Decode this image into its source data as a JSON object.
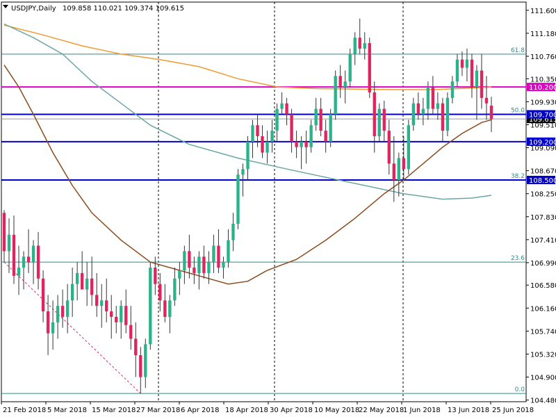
{
  "header": {
    "symbol_timeframe": "USDJPY,Daily",
    "ohlc": "109.858 110.021 109.374 109.615"
  },
  "chart_data": {
    "type": "candlestick",
    "ylim": [
      104.45,
      111.75
    ],
    "y_ticks": [
      "111.600",
      "111.180",
      "110.760",
      "110.350",
      "109.930",
      "109.510",
      "109.090",
      "108.670",
      "108.250",
      "107.830",
      "107.410",
      "106.990",
      "106.580",
      "106.160",
      "105.740",
      "105.320",
      "104.900",
      "104.480"
    ],
    "x_tick_labels": [
      "21 Feb 2018",
      "5 Mar 2018",
      "15 Mar 2018",
      "27 Mar 2018",
      "6 Apr 2018",
      "18 Apr 2018",
      "30 Apr 2018",
      "10 May 2018",
      "22 May 2018",
      "1 Jun 2018",
      "13 Jun 2018",
      "25 Jun 2018"
    ],
    "candles": [
      {
        "o": 107.9,
        "h": 107.95,
        "l": 107.0,
        "c": 107.2
      },
      {
        "o": 107.2,
        "h": 107.8,
        "l": 106.8,
        "c": 107.5
      },
      {
        "o": 107.5,
        "h": 107.85,
        "l": 106.6,
        "c": 106.75
      },
      {
        "o": 106.75,
        "h": 107.3,
        "l": 106.4,
        "c": 106.9
      },
      {
        "o": 106.9,
        "h": 107.2,
        "l": 106.5,
        "c": 107.1
      },
      {
        "o": 107.1,
        "h": 107.6,
        "l": 106.8,
        "c": 107.0
      },
      {
        "o": 107.0,
        "h": 107.4,
        "l": 106.6,
        "c": 107.3
      },
      {
        "o": 107.3,
        "h": 107.55,
        "l": 106.5,
        "c": 106.7
      },
      {
        "o": 106.7,
        "h": 106.85,
        "l": 105.9,
        "c": 106.1
      },
      {
        "o": 106.1,
        "h": 106.4,
        "l": 105.3,
        "c": 105.7
      },
      {
        "o": 105.7,
        "h": 106.3,
        "l": 105.4,
        "c": 105.9
      },
      {
        "o": 105.9,
        "h": 106.4,
        "l": 105.6,
        "c": 106.2
      },
      {
        "o": 106.2,
        "h": 106.5,
        "l": 105.8,
        "c": 106.0
      },
      {
        "o": 106.0,
        "h": 106.6,
        "l": 105.7,
        "c": 106.3
      },
      {
        "o": 106.3,
        "h": 106.9,
        "l": 106.0,
        "c": 106.6
      },
      {
        "o": 106.6,
        "h": 107.0,
        "l": 106.3,
        "c": 106.8
      },
      {
        "o": 106.8,
        "h": 107.2,
        "l": 106.5,
        "c": 106.5
      },
      {
        "o": 106.5,
        "h": 107.0,
        "l": 106.2,
        "c": 106.7
      },
      {
        "o": 106.7,
        "h": 107.1,
        "l": 106.2,
        "c": 106.4
      },
      {
        "o": 106.4,
        "h": 106.8,
        "l": 106.0,
        "c": 106.2
      },
      {
        "o": 106.2,
        "h": 106.6,
        "l": 105.8,
        "c": 106.3
      },
      {
        "o": 106.3,
        "h": 106.7,
        "l": 105.9,
        "c": 106.1
      },
      {
        "o": 106.1,
        "h": 106.4,
        "l": 105.6,
        "c": 106.0
      },
      {
        "o": 106.0,
        "h": 106.2,
        "l": 105.7,
        "c": 105.9
      },
      {
        "o": 105.9,
        "h": 106.3,
        "l": 105.6,
        "c": 106.2
      },
      {
        "o": 106.2,
        "h": 106.5,
        "l": 105.7,
        "c": 105.85
      },
      {
        "o": 105.85,
        "h": 106.2,
        "l": 105.4,
        "c": 105.6
      },
      {
        "o": 105.6,
        "h": 105.9,
        "l": 104.9,
        "c": 105.3
      },
      {
        "o": 105.3,
        "h": 105.45,
        "l": 104.6,
        "c": 104.9
      },
      {
        "o": 104.9,
        "h": 105.6,
        "l": 104.7,
        "c": 105.5
      },
      {
        "o": 105.5,
        "h": 107.0,
        "l": 105.4,
        "c": 106.9
      },
      {
        "o": 106.9,
        "h": 107.1,
        "l": 106.4,
        "c": 106.6
      },
      {
        "o": 106.6,
        "h": 106.8,
        "l": 106.1,
        "c": 106.3
      },
      {
        "o": 106.3,
        "h": 106.6,
        "l": 105.9,
        "c": 106.0
      },
      {
        "o": 106.0,
        "h": 106.4,
        "l": 105.7,
        "c": 106.3
      },
      {
        "o": 106.3,
        "h": 106.9,
        "l": 106.2,
        "c": 106.7
      },
      {
        "o": 106.7,
        "h": 107.0,
        "l": 106.4,
        "c": 106.85
      },
      {
        "o": 106.85,
        "h": 107.3,
        "l": 106.6,
        "c": 107.2
      },
      {
        "o": 107.2,
        "h": 107.5,
        "l": 106.7,
        "c": 106.9
      },
      {
        "o": 106.9,
        "h": 107.1,
        "l": 106.6,
        "c": 106.8
      },
      {
        "o": 106.8,
        "h": 107.2,
        "l": 106.5,
        "c": 107.1
      },
      {
        "o": 107.1,
        "h": 107.3,
        "l": 106.7,
        "c": 106.8
      },
      {
        "o": 106.8,
        "h": 107.2,
        "l": 106.6,
        "c": 107.0
      },
      {
        "o": 107.0,
        "h": 107.5,
        "l": 106.8,
        "c": 107.3
      },
      {
        "o": 107.3,
        "h": 107.6,
        "l": 106.8,
        "c": 106.9
      },
      {
        "o": 106.9,
        "h": 107.1,
        "l": 106.7,
        "c": 107.0
      },
      {
        "o": 107.0,
        "h": 107.6,
        "l": 106.9,
        "c": 107.4
      },
      {
        "o": 107.4,
        "h": 107.9,
        "l": 107.2,
        "c": 107.7
      },
      {
        "o": 107.7,
        "h": 108.7,
        "l": 107.6,
        "c": 108.6
      },
      {
        "o": 108.6,
        "h": 108.8,
        "l": 108.2,
        "c": 108.7
      },
      {
        "o": 108.7,
        "h": 109.3,
        "l": 108.5,
        "c": 109.2
      },
      {
        "o": 109.2,
        "h": 109.6,
        "l": 108.9,
        "c": 109.5
      },
      {
        "o": 109.5,
        "h": 109.7,
        "l": 109.1,
        "c": 109.3
      },
      {
        "o": 109.3,
        "h": 109.5,
        "l": 108.9,
        "c": 109.0
      },
      {
        "o": 109.0,
        "h": 109.4,
        "l": 108.8,
        "c": 109.2
      },
      {
        "o": 109.2,
        "h": 109.6,
        "l": 109.0,
        "c": 109.4
      },
      {
        "o": 109.4,
        "h": 109.9,
        "l": 109.2,
        "c": 109.8
      },
      {
        "o": 109.8,
        "h": 110.1,
        "l": 109.7,
        "c": 109.9
      },
      {
        "o": 109.9,
        "h": 110.0,
        "l": 109.5,
        "c": 109.7
      },
      {
        "o": 109.7,
        "h": 109.8,
        "l": 109.0,
        "c": 109.2
      },
      {
        "o": 109.2,
        "h": 109.4,
        "l": 108.9,
        "c": 109.1
      },
      {
        "o": 109.1,
        "h": 109.3,
        "l": 108.7,
        "c": 109.2
      },
      {
        "o": 109.2,
        "h": 109.4,
        "l": 108.8,
        "c": 109.1
      },
      {
        "o": 109.1,
        "h": 109.6,
        "l": 109.0,
        "c": 109.5
      },
      {
        "o": 109.5,
        "h": 110.0,
        "l": 109.4,
        "c": 109.8
      },
      {
        "o": 109.8,
        "h": 110.0,
        "l": 109.3,
        "c": 109.4
      },
      {
        "o": 109.4,
        "h": 109.6,
        "l": 109.0,
        "c": 109.2
      },
      {
        "o": 109.2,
        "h": 109.8,
        "l": 109.1,
        "c": 109.7
      },
      {
        "o": 109.7,
        "h": 110.5,
        "l": 109.6,
        "c": 110.4
      },
      {
        "o": 110.4,
        "h": 110.6,
        "l": 110.0,
        "c": 110.2
      },
      {
        "o": 110.2,
        "h": 110.5,
        "l": 109.9,
        "c": 110.3
      },
      {
        "o": 110.3,
        "h": 110.9,
        "l": 110.2,
        "c": 110.8
      },
      {
        "o": 110.8,
        "h": 111.2,
        "l": 110.6,
        "c": 111.1
      },
      {
        "o": 111.1,
        "h": 111.45,
        "l": 110.8,
        "c": 110.9
      },
      {
        "o": 110.9,
        "h": 111.2,
        "l": 110.7,
        "c": 111.0
      },
      {
        "o": 111.0,
        "h": 111.1,
        "l": 110.0,
        "c": 110.1
      },
      {
        "o": 110.1,
        "h": 110.3,
        "l": 109.0,
        "c": 109.3
      },
      {
        "o": 109.3,
        "h": 109.9,
        "l": 109.2,
        "c": 109.8
      },
      {
        "o": 109.8,
        "h": 109.95,
        "l": 109.2,
        "c": 109.4
      },
      {
        "o": 109.4,
        "h": 109.6,
        "l": 108.6,
        "c": 108.8
      },
      {
        "o": 108.8,
        "h": 109.3,
        "l": 108.1,
        "c": 108.5
      },
      {
        "o": 108.5,
        "h": 109.0,
        "l": 108.2,
        "c": 108.9
      },
      {
        "o": 108.9,
        "h": 109.3,
        "l": 108.5,
        "c": 108.7
      },
      {
        "o": 108.7,
        "h": 109.6,
        "l": 108.6,
        "c": 109.5
      },
      {
        "o": 109.5,
        "h": 110.0,
        "l": 109.4,
        "c": 109.9
      },
      {
        "o": 109.9,
        "h": 110.1,
        "l": 109.6,
        "c": 109.7
      },
      {
        "o": 109.7,
        "h": 110.0,
        "l": 109.5,
        "c": 109.8
      },
      {
        "o": 109.8,
        "h": 110.3,
        "l": 109.6,
        "c": 110.2
      },
      {
        "o": 110.2,
        "h": 110.4,
        "l": 109.7,
        "c": 109.8
      },
      {
        "o": 109.8,
        "h": 110.1,
        "l": 109.6,
        "c": 109.9
      },
      {
        "o": 109.9,
        "h": 110.0,
        "l": 109.2,
        "c": 109.4
      },
      {
        "o": 109.4,
        "h": 110.1,
        "l": 109.3,
        "c": 110.0
      },
      {
        "o": 110.0,
        "h": 110.4,
        "l": 109.9,
        "c": 110.3
      },
      {
        "o": 110.3,
        "h": 110.8,
        "l": 110.2,
        "c": 110.7
      },
      {
        "o": 110.7,
        "h": 110.85,
        "l": 110.4,
        "c": 110.55
      },
      {
        "o": 110.55,
        "h": 110.9,
        "l": 110.3,
        "c": 110.7
      },
      {
        "o": 110.7,
        "h": 110.8,
        "l": 110.0,
        "c": 110.2
      },
      {
        "o": 110.2,
        "h": 110.6,
        "l": 109.6,
        "c": 110.5
      },
      {
        "o": 110.5,
        "h": 110.8,
        "l": 109.8,
        "c": 110.0
      },
      {
        "o": 110.0,
        "h": 110.4,
        "l": 109.6,
        "c": 109.9
      },
      {
        "o": 109.858,
        "h": 110.021,
        "l": 109.374,
        "c": 109.615
      }
    ],
    "horizontal_lines": [
      {
        "price": 110.8,
        "label": "61.8",
        "color": "#2e8b8b"
      },
      {
        "price": 110.2,
        "label": "110.200",
        "color": "#e000c8"
      },
      {
        "price": 109.7,
        "label": "109.700",
        "color": "#0000cc"
      },
      {
        "price": 109.2,
        "label": "109.200",
        "color": "#0000cc"
      },
      {
        "price": 108.5,
        "label": "108.500",
        "color": "#0000cc"
      },
      {
        "price": 107.0,
        "label": "23.6",
        "color": "#2e8b8b"
      },
      {
        "price": 104.6,
        "label": "0.0",
        "color": "#2e8b8b"
      }
    ],
    "level_labels": [
      "50.0",
      "38.2"
    ],
    "current_price": "109.615",
    "colors": {
      "bull": "#2ab38a",
      "bear": "#e0245e",
      "wick": "#333333",
      "ma_orange": "#f09a30",
      "ma_teal": "#6aa6a6",
      "ma_brown": "#8b4a1e",
      "grid": "#000000",
      "axis": "#000000"
    }
  }
}
